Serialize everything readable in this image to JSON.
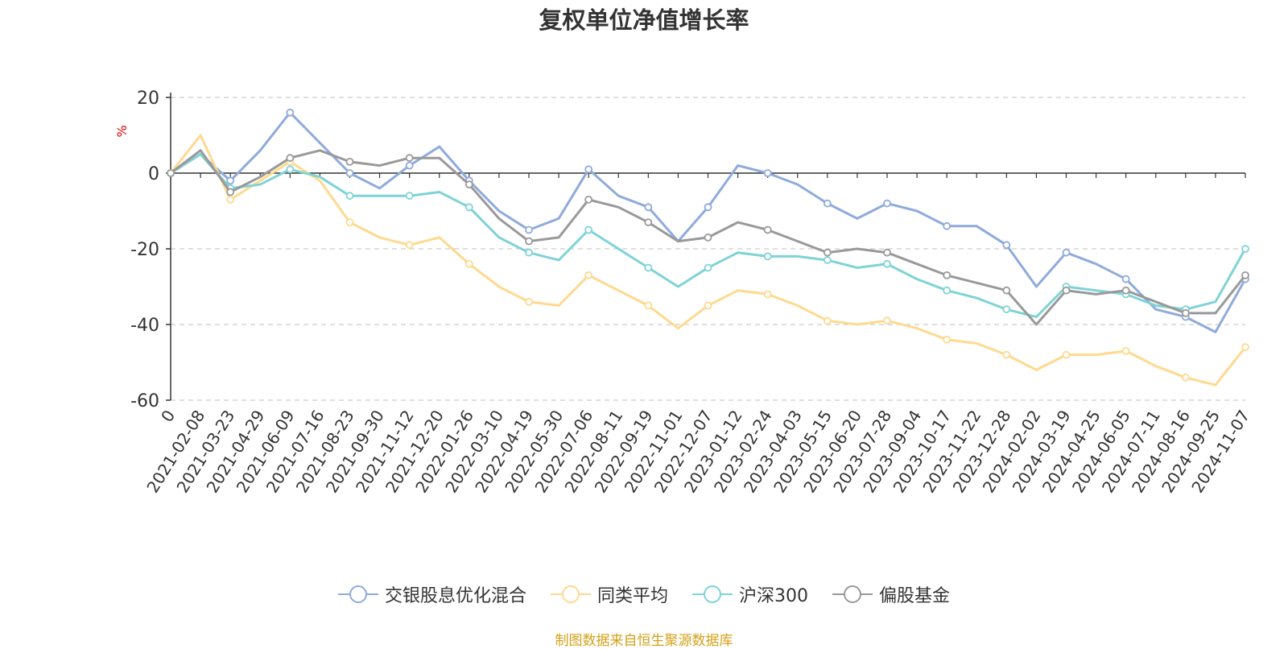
{
  "chart_data": {
    "type": "line",
    "title": "复权单位净值增长率",
    "ylabel": "%",
    "ylim": [
      -60,
      20
    ],
    "yticks": [
      "20",
      "0",
      "-20",
      "-40",
      "-60"
    ],
    "categories": [
      "0",
      "2021-02-08",
      "2021-03-23",
      "2021-04-29",
      "2021-06-09",
      "2021-07-16",
      "2021-08-23",
      "2021-09-30",
      "2021-11-12",
      "2021-12-20",
      "2022-01-26",
      "2022-03-10",
      "2022-04-19",
      "2022-05-30",
      "2022-07-06",
      "2022-08-11",
      "2022-09-19",
      "2022-11-01",
      "2022-12-07",
      "2023-01-12",
      "2023-02-24",
      "2023-04-03",
      "2023-05-15",
      "2023-06-20",
      "2023-07-28",
      "2023-09-04",
      "2023-10-17",
      "2023-11-22",
      "2023-12-28",
      "2024-02-02",
      "2024-03-19",
      "2024-04-25",
      "2024-06-05",
      "2024-07-11",
      "2024-08-16",
      "2024-09-25",
      "2024-11-07"
    ],
    "grid": true,
    "legend_position": "bottom",
    "series": [
      {
        "name": "交银股息优化混合",
        "color": "#8faadc",
        "values": [
          0,
          5,
          -2,
          6,
          16,
          8,
          0,
          -4,
          2,
          7,
          -2,
          -10,
          -15,
          -12,
          1,
          -6,
          -9,
          -18,
          -9,
          2,
          0,
          -3,
          -8,
          -12,
          -8,
          -10,
          -14,
          -14,
          -19,
          -30,
          -21,
          -24,
          -28,
          -36,
          -38,
          -42,
          -28
        ]
      },
      {
        "name": "同类平均",
        "color": "#ffd98e",
        "values": [
          0,
          10,
          -7,
          -2,
          3,
          -2,
          -13,
          -17,
          -19,
          -17,
          -24,
          -30,
          -34,
          -35,
          -27,
          -31,
          -35,
          -41,
          -35,
          -31,
          -32,
          -35,
          -39,
          -40,
          -39,
          -41,
          -44,
          -45,
          -48,
          -52,
          -48,
          -48,
          -47,
          -51,
          -54,
          -56,
          -46
        ]
      },
      {
        "name": "沪深300",
        "color": "#7fd3d6",
        "values": [
          0,
          5,
          -4,
          -3,
          1,
          -1,
          -6,
          -6,
          -6,
          -5,
          -9,
          -17,
          -21,
          -23,
          -15,
          -20,
          -25,
          -30,
          -25,
          -21,
          -22,
          -22,
          -23,
          -25,
          -24,
          -28,
          -31,
          -33,
          -36,
          -38,
          -30,
          -31,
          -32,
          -35,
          -36,
          -34,
          -20
        ]
      },
      {
        "name": "偏股基金",
        "color": "#999999",
        "values": [
          0,
          6,
          -5,
          -1,
          4,
          6,
          3,
          2,
          4,
          4,
          -3,
          -12,
          -18,
          -17,
          -7,
          -9,
          -13,
          -18,
          -17,
          -13,
          -15,
          -18,
          -21,
          -20,
          -21,
          -24,
          -27,
          -29,
          -31,
          -40,
          -31,
          -32,
          -31,
          -34,
          -37,
          -37,
          -27
        ]
      }
    ]
  },
  "legend": {
    "items": [
      "交银股息优化混合",
      "同类平均",
      "沪深300",
      "偏股基金"
    ]
  },
  "footer": {
    "source_text": "制图数据来自恒生聚源数据库",
    "source_color": "#d4a017"
  },
  "colors": {
    "axis": "#333333",
    "grid": "#cccccc",
    "ylabel": "#e00000"
  }
}
